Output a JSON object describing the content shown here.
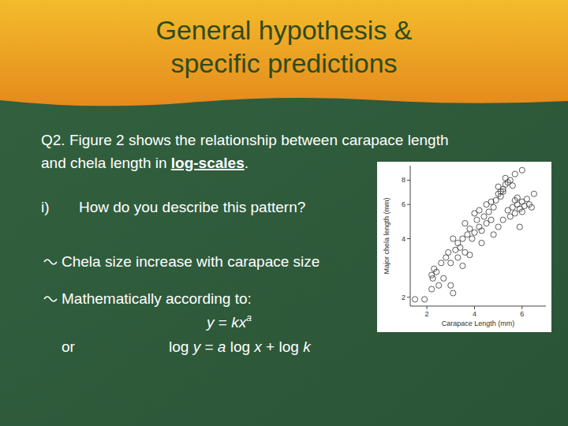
{
  "slide": {
    "title": [
      "General hypothesis &",
      "specific predictions"
    ],
    "question": [
      "Q2. Figure 2 shows the relationship between carapace length",
      "and chela length in ",
      "log-scales",
      "."
    ],
    "sub_label": "i)",
    "sub_question": "How do you describe this pattern?",
    "bullets": [
      "Chela size increase with carapace size",
      "Mathematically according to:"
    ],
    "equation": {
      "base": "y = kx",
      "exponent": "a",
      "connector": "or",
      "log_form": "log y = a log x + log k"
    }
  },
  "chart_data": {
    "type": "scatter",
    "x_label": "Carapace Length (mm)",
    "y_label": "Major chela length (mm)",
    "log": "y",
    "marker": "open-circle",
    "color": "#333333",
    "xlim": [
      1.3,
      7
    ],
    "xticks": [
      2,
      4,
      6
    ],
    "ylim": [
      1.8,
      9.5
    ],
    "yticks": [
      2,
      4,
      6,
      8
    ],
    "x": [
      1.5,
      1.9,
      2.2,
      2.3,
      2.25,
      2.4,
      2.2,
      2.5,
      3.0,
      3.1,
      2.6,
      2.8,
      2.9,
      3.0,
      3.2,
      3.3,
      3.4,
      3.5,
      3.3,
      3.6,
      3.7,
      3.8,
      3.6,
      3.9,
      4.0,
      4.1,
      4.2,
      4.3,
      4.4,
      4.0,
      4.5,
      4.6,
      4.7,
      4.8,
      4.5,
      4.9,
      5.0,
      5.1,
      5.2,
      5.0,
      5.3,
      5.4,
      5.2,
      5.5,
      5.3,
      5.6,
      5.1,
      5.7,
      6.0,
      5.2,
      5.4,
      5.6,
      5.8,
      5.9,
      6.0,
      6.1,
      6.2,
      5.8,
      6.3,
      6.4,
      5.7,
      6.0,
      6.5,
      4.3,
      4.8,
      5.0,
      5.5,
      5.7,
      3.1,
      3.8,
      4.2,
      4.7,
      5.9,
      2.7,
      3.5
    ],
    "values": [
      1.95,
      1.95,
      2.6,
      2.8,
      2.5,
      2.7,
      2.2,
      2.3,
      2.3,
      2.1,
      3.0,
      3.2,
      3.4,
      3.0,
      3.5,
      3.8,
      3.6,
      4.0,
      3.2,
      3.4,
      4.2,
      4.5,
      4.8,
      4.0,
      4.3,
      5.0,
      4.6,
      3.8,
      5.2,
      5.4,
      4.8,
      5.5,
      5.0,
      5.8,
      6.0,
      6.3,
      6.8,
      7.0,
      7.2,
      7.4,
      7.6,
      7.8,
      7.0,
      8.0,
      8.2,
      7.5,
      6.6,
      8.6,
      9.0,
      5.0,
      5.6,
      5.8,
      6.0,
      5.7,
      6.2,
      5.9,
      6.4,
      6.5,
      6.0,
      5.8,
      5.4,
      5.5,
      6.8,
      4.4,
      4.2,
      4.6,
      5.2,
      6.3,
      4.0,
      3.3,
      5.6,
      6.2,
      4.6,
      2.5,
      2.9
    ]
  }
}
